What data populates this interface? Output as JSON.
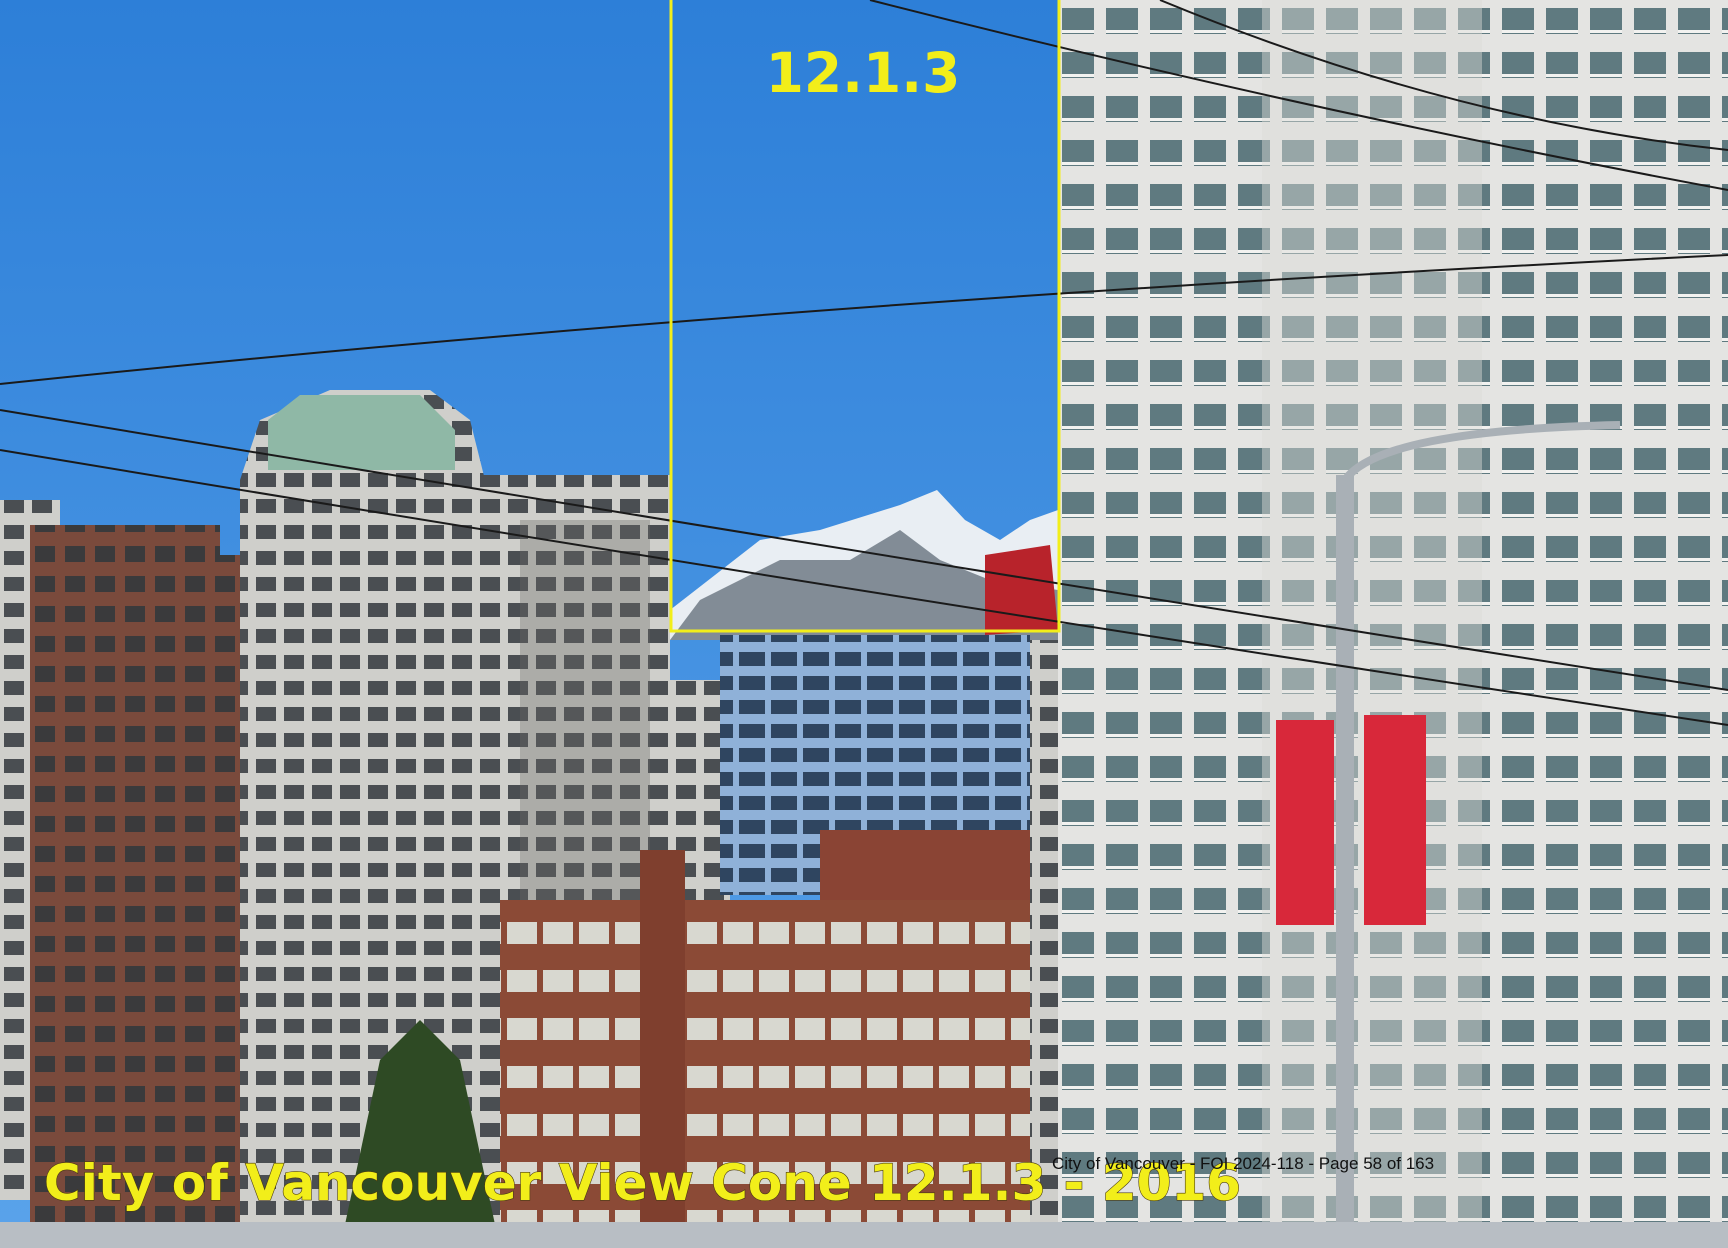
{
  "overlay": {
    "view_label": "12.1.3",
    "caption": "City of Vancouver View Cone 12.1.3 - 2016",
    "footer": "City of Vancouver - FOI 2024-118 - Page 58 of 163"
  }
}
